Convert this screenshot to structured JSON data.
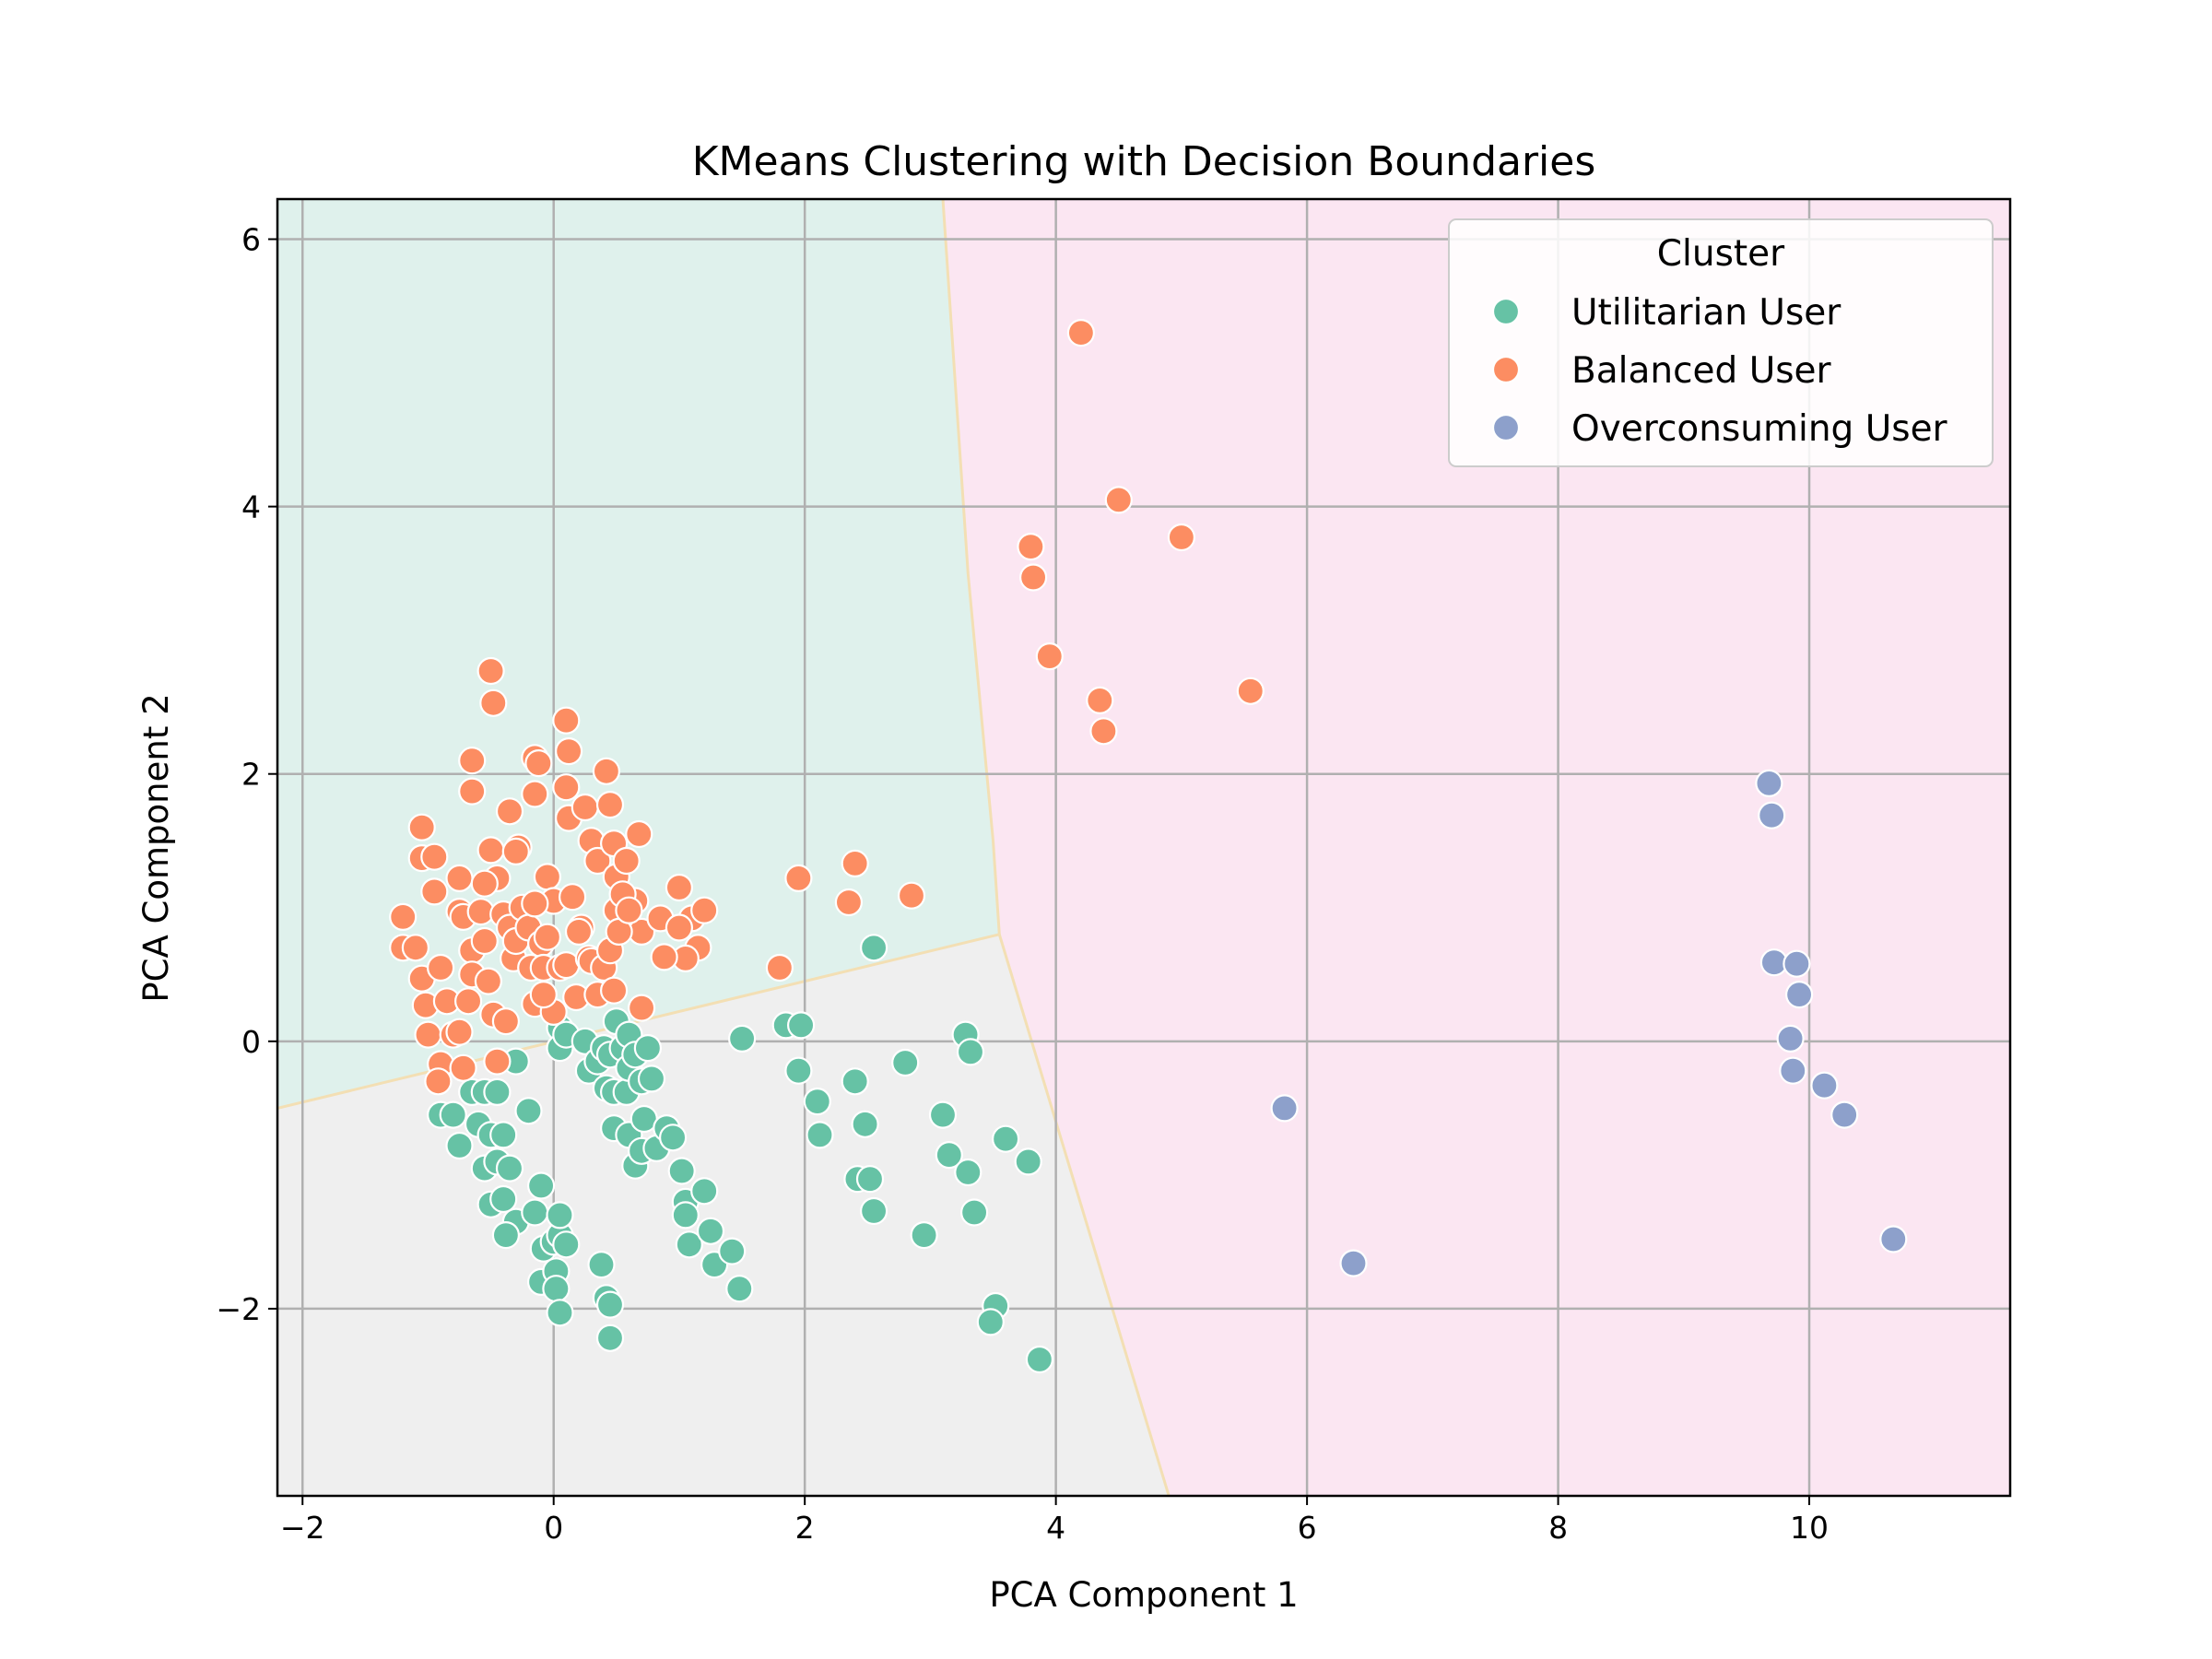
{
  "chart_data": {
    "type": "scatter",
    "title": "KMeans Clustering with Decision Boundaries",
    "xlabel": "PCA Component 1",
    "ylabel": "PCA Component 2",
    "xlim": [
      -2.2,
      11.6
    ],
    "ylim": [
      -3.4,
      6.3
    ],
    "xticks": [
      -2,
      0,
      2,
      4,
      6,
      8,
      10
    ],
    "yticks": [
      -2,
      0,
      2,
      4,
      6
    ],
    "xtick_labels": [
      "−2",
      "0",
      "2",
      "4",
      "6",
      "8",
      "10"
    ],
    "ytick_labels": [
      "−2",
      "0",
      "2",
      "4",
      "6"
    ],
    "grid": true,
    "legend": {
      "title": "Cluster",
      "placement": "upper right"
    },
    "regions": [
      {
        "cluster": "Utilitarian User",
        "color": "#dff1ec"
      },
      {
        "cluster": "Balanced User",
        "color": "#efefef"
      },
      {
        "cluster": "Overconsuming User",
        "color": "#fbe6f2"
      }
    ],
    "boundary_color": "#f3dfb4",
    "series": [
      {
        "name": "Utilitarian User",
        "color": "#66c2a5",
        "points": [
          [
            2.55,
            0.7
          ],
          [
            1.5,
            0.02
          ],
          [
            1.85,
            0.12
          ],
          [
            1.97,
            0.12
          ],
          [
            1.95,
            -0.22
          ],
          [
            2.1,
            -0.45
          ],
          [
            2.12,
            -0.7
          ],
          [
            2.4,
            -0.3
          ],
          [
            2.48,
            -0.62
          ],
          [
            2.42,
            -1.03
          ],
          [
            2.52,
            -1.03
          ],
          [
            2.55,
            -1.27
          ],
          [
            2.8,
            -0.16
          ],
          [
            2.95,
            -1.45
          ],
          [
            3.1,
            -0.55
          ],
          [
            3.15,
            -0.85
          ],
          [
            3.28,
            0.05
          ],
          [
            3.3,
            -0.98
          ],
          [
            3.32,
            -0.08
          ],
          [
            3.35,
            -1.28
          ],
          [
            3.52,
            -1.98
          ],
          [
            3.48,
            -2.1
          ],
          [
            3.6,
            -0.73
          ],
          [
            3.78,
            -0.9
          ],
          [
            3.87,
            -2.38
          ],
          [
            -0.3,
            -0.15
          ],
          [
            -0.9,
            -0.55
          ],
          [
            -0.8,
            -0.55
          ],
          [
            -0.75,
            -0.78
          ],
          [
            -0.65,
            -0.38
          ],
          [
            -0.55,
            -0.38
          ],
          [
            -0.45,
            -0.38
          ],
          [
            -0.6,
            -0.62
          ],
          [
            -0.5,
            -0.7
          ],
          [
            -0.4,
            -0.7
          ],
          [
            -0.55,
            -0.95
          ],
          [
            -0.45,
            -0.9
          ],
          [
            -0.35,
            -0.95
          ],
          [
            -0.5,
            -1.22
          ],
          [
            -0.4,
            -1.18
          ],
          [
            -0.3,
            -1.35
          ],
          [
            -0.38,
            -1.45
          ],
          [
            -0.2,
            -0.52
          ],
          [
            -0.15,
            -1.28
          ],
          [
            -0.1,
            -1.08
          ],
          [
            -0.08,
            -1.55
          ],
          [
            -0.1,
            -1.8
          ],
          [
            0.0,
            -1.5
          ],
          [
            0.02,
            -1.72
          ],
          [
            0.05,
            -1.45
          ],
          [
            0.05,
            -1.3
          ],
          [
            0.1,
            -1.52
          ],
          [
            0.02,
            -1.85
          ],
          [
            0.05,
            -2.03
          ],
          [
            0.05,
            0.1
          ],
          [
            0.05,
            -0.05
          ],
          [
            0.1,
            0.05
          ],
          [
            0.25,
            0.0
          ],
          [
            0.28,
            -0.22
          ],
          [
            0.35,
            -0.15
          ],
          [
            0.4,
            -0.05
          ],
          [
            0.45,
            -0.1
          ],
          [
            0.42,
            -0.35
          ],
          [
            0.48,
            -0.38
          ],
          [
            0.5,
            0.15
          ],
          [
            0.55,
            -0.05
          ],
          [
            0.58,
            -0.38
          ],
          [
            0.6,
            -0.2
          ],
          [
            0.6,
            0.05
          ],
          [
            0.65,
            -0.1
          ],
          [
            0.7,
            -0.3
          ],
          [
            0.75,
            -0.05
          ],
          [
            0.78,
            -0.28
          ],
          [
            0.48,
            -0.65
          ],
          [
            0.6,
            -0.7
          ],
          [
            0.65,
            -0.93
          ],
          [
            0.72,
            -0.58
          ],
          [
            0.7,
            -0.82
          ],
          [
            0.82,
            -0.8
          ],
          [
            0.9,
            -0.65
          ],
          [
            0.95,
            -0.72
          ],
          [
            1.02,
            -0.97
          ],
          [
            1.05,
            -1.2
          ],
          [
            1.05,
            -1.3
          ],
          [
            1.08,
            -1.52
          ],
          [
            1.2,
            -1.12
          ],
          [
            1.25,
            -1.42
          ],
          [
            1.28,
            -1.67
          ],
          [
            1.42,
            -1.57
          ],
          [
            1.48,
            -1.85
          ],
          [
            0.38,
            -1.67
          ],
          [
            0.42,
            -1.92
          ],
          [
            0.45,
            -1.97
          ],
          [
            0.45,
            -2.22
          ]
        ]
      },
      {
        "name": "Balanced User",
        "color": "#fc8d62",
        "points": [
          [
            4.2,
            5.3
          ],
          [
            4.5,
            4.05
          ],
          [
            5.0,
            3.77
          ],
          [
            3.8,
            3.7
          ],
          [
            3.82,
            3.47
          ],
          [
            3.95,
            2.88
          ],
          [
            4.35,
            2.55
          ],
          [
            4.38,
            2.32
          ],
          [
            5.55,
            2.62
          ],
          [
            1.95,
            1.22
          ],
          [
            2.4,
            1.33
          ],
          [
            2.35,
            1.04
          ],
          [
            2.85,
            1.09
          ],
          [
            1.8,
            0.55
          ],
          [
            -0.5,
            2.77
          ],
          [
            -0.48,
            2.53
          ],
          [
            -0.65,
            2.1
          ],
          [
            -0.65,
            1.87
          ],
          [
            -0.15,
            2.12
          ],
          [
            -0.12,
            2.08
          ],
          [
            0.1,
            2.4
          ],
          [
            0.12,
            2.17
          ],
          [
            0.1,
            1.9
          ],
          [
            0.12,
            1.67
          ],
          [
            -0.35,
            1.72
          ],
          [
            -0.28,
            1.45
          ],
          [
            -0.15,
            1.85
          ],
          [
            0.25,
            1.75
          ],
          [
            0.42,
            2.02
          ],
          [
            0.45,
            1.77
          ],
          [
            0.68,
            1.55
          ],
          [
            -1.05,
            1.6
          ],
          [
            -1.05,
            1.37
          ],
          [
            -0.95,
            1.38
          ],
          [
            -0.75,
            1.22
          ],
          [
            -0.5,
            1.43
          ],
          [
            -0.45,
            1.22
          ],
          [
            -0.3,
            1.42
          ],
          [
            -0.55,
            1.18
          ],
          [
            -0.05,
            1.23
          ],
          [
            0.0,
            1.05
          ],
          [
            0.15,
            1.08
          ],
          [
            0.3,
            1.5
          ],
          [
            0.35,
            1.35
          ],
          [
            0.48,
            1.48
          ],
          [
            0.5,
            1.23
          ],
          [
            0.58,
            1.35
          ],
          [
            0.55,
            1.05
          ],
          [
            0.65,
            1.05
          ],
          [
            0.7,
            0.82
          ],
          [
            0.5,
            0.98
          ],
          [
            1.0,
            1.15
          ],
          [
            1.1,
            0.92
          ],
          [
            1.2,
            0.98
          ],
          [
            1.15,
            0.7
          ],
          [
            1.05,
            0.62
          ],
          [
            0.88,
            0.63
          ],
          [
            0.85,
            0.92
          ],
          [
            1.0,
            0.85
          ],
          [
            -1.2,
            0.93
          ],
          [
            -1.2,
            0.7
          ],
          [
            -1.1,
            0.7
          ],
          [
            -1.05,
            0.47
          ],
          [
            -1.02,
            0.27
          ],
          [
            -1.0,
            0.05
          ],
          [
            -0.95,
            1.12
          ],
          [
            -0.9,
            0.55
          ],
          [
            -0.85,
            0.3
          ],
          [
            -0.8,
            0.05
          ],
          [
            -0.9,
            -0.17
          ],
          [
            -0.92,
            -0.3
          ],
          [
            -0.75,
            0.97
          ],
          [
            -0.72,
            0.93
          ],
          [
            -0.65,
            0.68
          ],
          [
            -0.65,
            0.5
          ],
          [
            -0.68,
            0.3
          ],
          [
            -0.75,
            0.07
          ],
          [
            -0.72,
            -0.2
          ],
          [
            -0.58,
            0.97
          ],
          [
            -0.55,
            0.75
          ],
          [
            -0.52,
            0.45
          ],
          [
            -0.48,
            0.2
          ],
          [
            -0.45,
            -0.15
          ],
          [
            -0.4,
            0.95
          ],
          [
            -0.35,
            0.85
          ],
          [
            -0.32,
            0.62
          ],
          [
            -0.3,
            0.75
          ],
          [
            -0.25,
            1.0
          ],
          [
            -0.2,
            0.85
          ],
          [
            -0.18,
            0.55
          ],
          [
            -0.15,
            1.03
          ],
          [
            -0.1,
            0.73
          ],
          [
            -0.05,
            0.78
          ],
          [
            -0.08,
            0.55
          ],
          [
            -0.15,
            0.28
          ],
          [
            0.05,
            0.55
          ],
          [
            0.0,
            0.22
          ],
          [
            0.1,
            0.57
          ],
          [
            0.18,
            0.33
          ],
          [
            0.22,
            0.85
          ],
          [
            0.28,
            0.62
          ],
          [
            0.3,
            0.6
          ],
          [
            0.35,
            0.35
          ],
          [
            0.4,
            0.55
          ],
          [
            0.45,
            0.68
          ],
          [
            0.48,
            0.38
          ],
          [
            0.52,
            0.82
          ],
          [
            0.55,
            1.1
          ],
          [
            0.6,
            0.98
          ],
          [
            0.7,
            0.25
          ],
          [
            0.2,
            0.82
          ],
          [
            -0.08,
            0.35
          ],
          [
            -0.38,
            0.15
          ]
        ]
      },
      {
        "name": "Overconsuming User",
        "color": "#8da0cb",
        "points": [
          [
            9.68,
            1.93
          ],
          [
            9.7,
            1.69
          ],
          [
            9.72,
            0.59
          ],
          [
            9.9,
            0.58
          ],
          [
            9.92,
            0.35
          ],
          [
            9.85,
            0.02
          ],
          [
            9.87,
            -0.22
          ],
          [
            10.12,
            -0.33
          ],
          [
            10.28,
            -0.55
          ],
          [
            10.67,
            -1.48
          ],
          [
            5.82,
            -0.5
          ],
          [
            6.37,
            -1.66
          ]
        ]
      }
    ]
  }
}
